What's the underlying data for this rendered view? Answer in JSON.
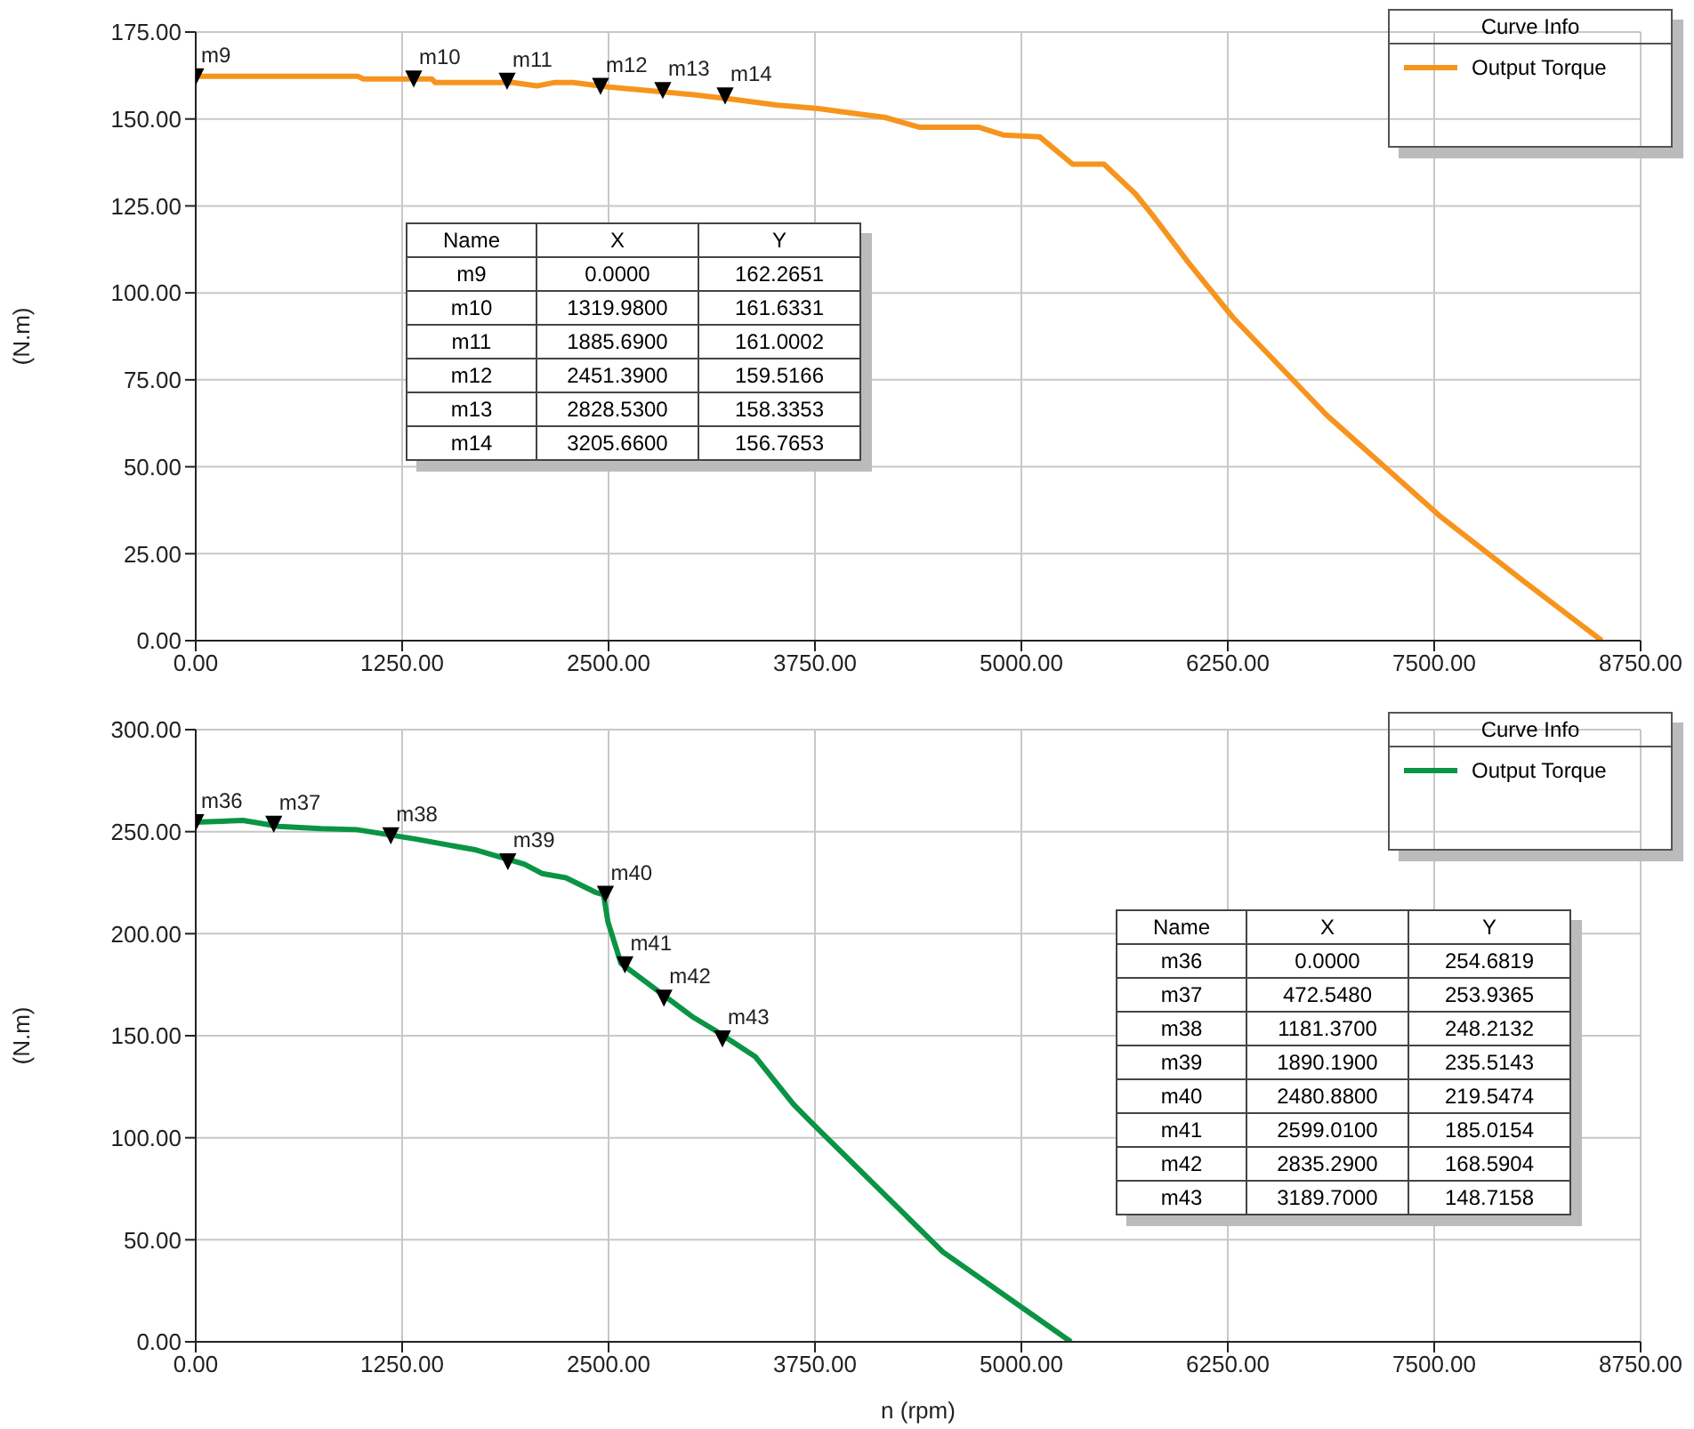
{
  "chart_data": [
    {
      "type": "line",
      "ylabel": "(N.m)",
      "legend_title": "Curve Info",
      "legend": "top right",
      "grid": true,
      "xlim": [
        0,
        8750
      ],
      "xticks": [
        {
          "value": 0,
          "label": "0.00"
        },
        {
          "value": 1250,
          "label": "1250.00"
        },
        {
          "value": 2500,
          "label": "2500.00"
        },
        {
          "value": 3750,
          "label": "3750.00"
        },
        {
          "value": 5000,
          "label": "5000.00"
        },
        {
          "value": 6250,
          "label": "6250.00"
        },
        {
          "value": 7500,
          "label": "7500.00"
        },
        {
          "value": 8750,
          "label": "8750.00"
        }
      ],
      "ylim": [
        0,
        175
      ],
      "yticks": [
        {
          "value": 0,
          "label": "0.00"
        },
        {
          "value": 25,
          "label": "25.00"
        },
        {
          "value": 50,
          "label": "50.00"
        },
        {
          "value": 75,
          "label": "75.00"
        },
        {
          "value": 100,
          "label": "100.00"
        },
        {
          "value": 125,
          "label": "125.00"
        },
        {
          "value": 150,
          "label": "150.00"
        },
        {
          "value": 175,
          "label": "175.00"
        }
      ],
      "series": [
        {
          "name": "Output Torque",
          "type": "line",
          "color": "#f7941d",
          "x": [
            0,
            980,
            1015,
            1430,
            1450,
            1920,
            2065,
            2175,
            2285,
            2500,
            3005,
            3260,
            3515,
            3770,
            4020,
            4170,
            4385,
            4745,
            4890,
            5110,
            5310,
            5500,
            5690,
            5800,
            6015,
            6280,
            6850,
            7530,
            8045,
            8515
          ],
          "values": [
            162.3,
            162.3,
            161.5,
            161.5,
            160.5,
            160.5,
            159.5,
            160.5,
            160.5,
            159.2,
            157,
            155.6,
            154,
            153,
            151.4,
            150.5,
            147.6,
            147.6,
            145.4,
            144.9,
            137,
            137,
            128.5,
            122,
            108.5,
            93,
            64.8,
            36,
            17,
            0
          ]
        },
        {
          "type": "scatter",
          "color": "#000000",
          "marker": "triangle",
          "x": [
            0,
            1319.98,
            1885.69,
            2451.39,
            2828.53,
            3205.66
          ],
          "values": [
            162.2651,
            161.6331,
            161.0002,
            159.5166,
            158.3353,
            156.7653
          ]
        }
      ],
      "annotations": [
        "Name",
        "X",
        "Y",
        "m9",
        "0.0000",
        "162.2651",
        "m10",
        "1319.9800",
        "161.6331",
        "m11",
        "1885.6900",
        "161.0002",
        "m12",
        "2451.3900",
        "159.5166",
        "m13",
        "2828.5300",
        "158.3353",
        "m14",
        "3205.6600",
        "156.7653",
        {
          "text": "m9",
          "x": 0,
          "y": 162.2651
        },
        {
          "text": "m10",
          "x": 1319.98,
          "y": 161.6331
        },
        {
          "text": "m11",
          "x": 1885.69,
          "y": 161.0002
        },
        {
          "text": "m12",
          "x": 2451.39,
          "y": 159.5166
        },
        {
          "text": "m13",
          "x": 2828.53,
          "y": 158.3353
        },
        {
          "text": "m14",
          "x": 3205.66,
          "y": 156.7653
        }
      ]
    },
    {
      "type": "line",
      "xlabel": "n (rpm)",
      "ylabel": "(N.m)",
      "legend_title": "Curve Info",
      "legend": "top right",
      "grid": true,
      "xlim": [
        0,
        8750
      ],
      "xticks": [
        {
          "value": 0,
          "label": "0.00"
        },
        {
          "value": 1250,
          "label": "1250.00"
        },
        {
          "value": 2500,
          "label": "2500.00"
        },
        {
          "value": 3750,
          "label": "3750.00"
        },
        {
          "value": 5000,
          "label": "5000.00"
        },
        {
          "value": 6250,
          "label": "6250.00"
        },
        {
          "value": 7500,
          "label": "7500.00"
        },
        {
          "value": 8750,
          "label": "8750.00"
        }
      ],
      "ylim": [
        0,
        300
      ],
      "yticks": [
        {
          "value": 0,
          "label": "0.00"
        },
        {
          "value": 50,
          "label": "50.00"
        },
        {
          "value": 100,
          "label": "100.00"
        },
        {
          "value": 150,
          "label": "150.00"
        },
        {
          "value": 200,
          "label": "200.00"
        },
        {
          "value": 250,
          "label": "250.00"
        },
        {
          "value": 300,
          "label": "300.00"
        }
      ],
      "series": [
        {
          "name": "Output Torque",
          "type": "line",
          "color": "#0a9444",
          "x": [
            0,
            286,
            504,
            757,
            975,
            1337,
            1699,
            1989,
            2097,
            2242,
            2423,
            2470,
            2496,
            2575,
            2786,
            3004,
            3149,
            3390,
            3620,
            3728,
            4127,
            4525,
            4960,
            5300
          ],
          "values": [
            254.7,
            255.5,
            252.6,
            251.5,
            251,
            246.3,
            241,
            234.1,
            229.5,
            227.4,
            220.2,
            219,
            205.9,
            185.5,
            172.7,
            159.5,
            152.4,
            139.6,
            116.4,
            107.5,
            75.7,
            44,
            19.3,
            0
          ]
        },
        {
          "type": "scatter",
          "color": "#000000",
          "marker": "triangle",
          "x": [
            0,
            472.548,
            1181.37,
            1890.19,
            2480.88,
            2599.01,
            2835.29,
            3189.7
          ],
          "values": [
            254.6819,
            253.9365,
            248.2132,
            235.5143,
            219.5474,
            185.0154,
            168.5904,
            148.7158
          ]
        }
      ],
      "annotations": [
        "Name",
        "X",
        "Y",
        "m36",
        "0.0000",
        "254.6819",
        "m37",
        "472.5480",
        "253.9365",
        "m38",
        "1181.3700",
        "248.2132",
        "m39",
        "1890.1900",
        "235.5143",
        "m40",
        "2480.8800",
        "219.5474",
        "m41",
        "2599.0100",
        "185.0154",
        "m42",
        "2835.2900",
        "168.5904",
        "m43",
        "3189.7000",
        "148.7158",
        {
          "text": "m36",
          "x": 0,
          "y": 254.6819
        },
        {
          "text": "m37",
          "x": 472.548,
          "y": 253.9365
        },
        {
          "text": "m38",
          "x": 1181.37,
          "y": 248.2132
        },
        {
          "text": "m39",
          "x": 1890.19,
          "y": 235.5143
        },
        {
          "text": "m40",
          "x": 2480.88,
          "y": 219.5474
        },
        {
          "text": "m41",
          "x": 2599.01,
          "y": 185.0154
        },
        {
          "text": "m42",
          "x": 2835.29,
          "y": 168.5904
        },
        {
          "text": "m43",
          "x": 3189.7,
          "y": 148.7158
        }
      ]
    }
  ]
}
